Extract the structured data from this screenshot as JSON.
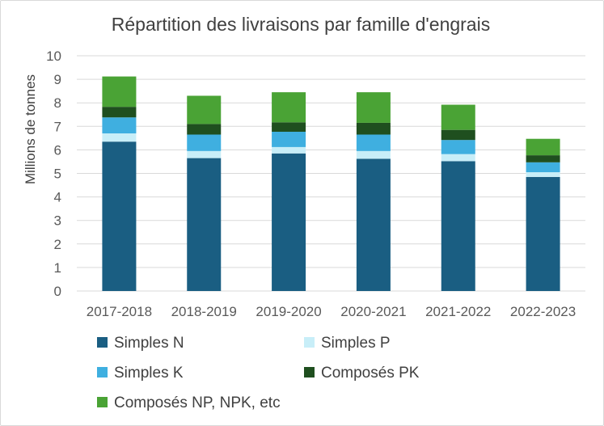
{
  "chart_data": {
    "type": "bar",
    "stacked": true,
    "title": "Répartition des livraisons par famille d'engrais",
    "xlabel": "",
    "ylabel": "Millions de tonnes",
    "ylim": [
      0,
      10
    ],
    "yticks": [
      "0",
      "1",
      "2",
      "3",
      "4",
      "5",
      "6",
      "7",
      "8",
      "9",
      "10"
    ],
    "grid": true,
    "legend_position": "bottom",
    "categories": [
      "2017-2018",
      "2018-2019",
      "2019-2020",
      "2020-2021",
      "2021-2022",
      "2022-2023"
    ],
    "series": [
      {
        "name": "Simples N",
        "color": "#1a5e82",
        "values": [
          6.35,
          5.65,
          5.85,
          5.62,
          5.52,
          4.85
        ]
      },
      {
        "name": "Simples P",
        "color": "#c8eef8",
        "values": [
          0.35,
          0.3,
          0.27,
          0.33,
          0.3,
          0.2
        ]
      },
      {
        "name": "Simples K",
        "color": "#3fafe0",
        "values": [
          0.68,
          0.7,
          0.65,
          0.7,
          0.6,
          0.42
        ]
      },
      {
        "name": "Composés PK",
        "color": "#1f4f1f",
        "values": [
          0.45,
          0.45,
          0.4,
          0.5,
          0.43,
          0.3
        ]
      },
      {
        "name": "Composés NP, NPK, etc",
        "color": "#4aa335",
        "values": [
          1.29,
          1.2,
          1.28,
          1.3,
          1.07,
          0.7
        ]
      }
    ]
  }
}
